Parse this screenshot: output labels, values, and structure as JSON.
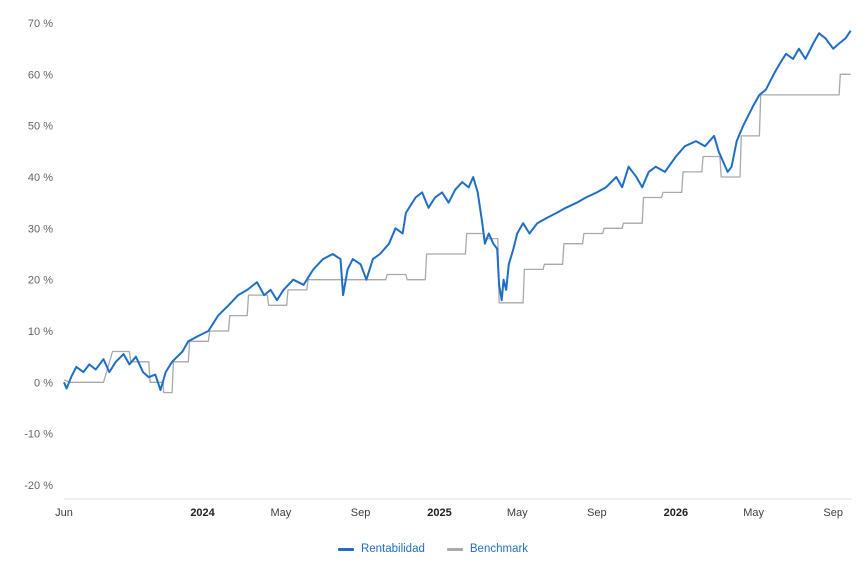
{
  "chart_data": {
    "type": "line",
    "title": "",
    "xlabel": "",
    "ylabel": "",
    "ylim": [
      -20,
      70
    ],
    "y_ticks": [
      70,
      60,
      50,
      40,
      30,
      20,
      10,
      0,
      -10,
      -20
    ],
    "y_tick_labels": [
      "70 %",
      "60 %",
      "50 %",
      "40 %",
      "30 %",
      "20 %",
      "10 %",
      "0 %",
      "-10 %",
      "-20 %"
    ],
    "x_range": [
      "2023-06-01",
      "2026-09-30"
    ],
    "x_ticks": [
      {
        "date": "2023-06-01",
        "label": "Jun",
        "bold": false
      },
      {
        "date": "2024-01-01",
        "label": "2024",
        "bold": true
      },
      {
        "date": "2024-05-01",
        "label": "May",
        "bold": false
      },
      {
        "date": "2024-09-01",
        "label": "Sep",
        "bold": false
      },
      {
        "date": "2025-01-01",
        "label": "2025",
        "bold": true
      },
      {
        "date": "2025-05-01",
        "label": "May",
        "bold": false
      },
      {
        "date": "2025-09-01",
        "label": "Sep",
        "bold": false
      },
      {
        "date": "2026-01-01",
        "label": "2026",
        "bold": true
      },
      {
        "date": "2026-05-01",
        "label": "May",
        "bold": false
      },
      {
        "date": "2026-09-01",
        "label": "Sep",
        "bold": false
      }
    ],
    "grid": true,
    "legend_position": "bottom-center",
    "series": [
      {
        "name": "Rentabilidad",
        "color": "#1f6ec6",
        "points": [
          [
            "2023-06-01",
            0.0
          ],
          [
            "2023-06-05",
            -1.2
          ],
          [
            "2023-06-12",
            1.0
          ],
          [
            "2023-06-20",
            3.0
          ],
          [
            "2023-07-01",
            2.0
          ],
          [
            "2023-07-10",
            3.5
          ],
          [
            "2023-07-20",
            2.5
          ],
          [
            "2023-08-01",
            4.5
          ],
          [
            "2023-08-10",
            2.0
          ],
          [
            "2023-08-20",
            4.0
          ],
          [
            "2023-09-01",
            5.5
          ],
          [
            "2023-09-10",
            3.5
          ],
          [
            "2023-09-20",
            5.0
          ],
          [
            "2023-10-01",
            2.0
          ],
          [
            "2023-10-10",
            1.0
          ],
          [
            "2023-10-20",
            1.5
          ],
          [
            "2023-10-28",
            -1.5
          ],
          [
            "2023-11-05",
            2.0
          ],
          [
            "2023-11-15",
            4.0
          ],
          [
            "2023-12-01",
            6.0
          ],
          [
            "2023-12-10",
            8.0
          ],
          [
            "2023-12-25",
            9.0
          ],
          [
            "2024-01-10",
            10.0
          ],
          [
            "2024-01-25",
            13.0
          ],
          [
            "2024-02-10",
            15.0
          ],
          [
            "2024-02-25",
            17.0
          ],
          [
            "2024-03-10",
            18.0
          ],
          [
            "2024-03-25",
            19.5
          ],
          [
            "2024-04-05",
            17.0
          ],
          [
            "2024-04-15",
            18.0
          ],
          [
            "2024-04-25",
            16.0
          ],
          [
            "2024-05-05",
            18.0
          ],
          [
            "2024-05-20",
            20.0
          ],
          [
            "2024-06-05",
            19.0
          ],
          [
            "2024-06-20",
            22.0
          ],
          [
            "2024-07-05",
            24.0
          ],
          [
            "2024-07-20",
            25.0
          ],
          [
            "2024-08-01",
            24.0
          ],
          [
            "2024-08-05",
            17.0
          ],
          [
            "2024-08-12",
            22.0
          ],
          [
            "2024-08-20",
            24.0
          ],
          [
            "2024-09-01",
            23.0
          ],
          [
            "2024-09-10",
            20.0
          ],
          [
            "2024-09-20",
            24.0
          ],
          [
            "2024-10-01",
            25.0
          ],
          [
            "2024-10-15",
            27.0
          ],
          [
            "2024-10-25",
            30.0
          ],
          [
            "2024-11-05",
            29.0
          ],
          [
            "2024-11-10",
            33.0
          ],
          [
            "2024-11-25",
            36.0
          ],
          [
            "2024-12-05",
            37.0
          ],
          [
            "2024-12-15",
            34.0
          ],
          [
            "2024-12-25",
            36.0
          ],
          [
            "2025-01-05",
            37.0
          ],
          [
            "2025-01-15",
            35.0
          ],
          [
            "2025-01-25",
            37.5
          ],
          [
            "2025-02-05",
            39.0
          ],
          [
            "2025-02-15",
            38.0
          ],
          [
            "2025-02-22",
            40.0
          ],
          [
            "2025-03-01",
            37.0
          ],
          [
            "2025-03-08",
            31.0
          ],
          [
            "2025-03-12",
            27.0
          ],
          [
            "2025-03-18",
            29.0
          ],
          [
            "2025-03-25",
            27.0
          ],
          [
            "2025-03-31",
            26.0
          ],
          [
            "2025-04-03",
            19.0
          ],
          [
            "2025-04-07",
            16.0
          ],
          [
            "2025-04-10",
            20.0
          ],
          [
            "2025-04-14",
            18.0
          ],
          [
            "2025-04-18",
            23.0
          ],
          [
            "2025-04-25",
            26.0
          ],
          [
            "2025-05-01",
            29.0
          ],
          [
            "2025-05-10",
            31.0
          ],
          [
            "2025-05-20",
            29.0
          ],
          [
            "2025-06-01",
            31.0
          ],
          [
            "2025-06-15",
            32.0
          ],
          [
            "2025-07-01",
            33.0
          ],
          [
            "2025-07-15",
            34.0
          ],
          [
            "2025-08-01",
            35.0
          ],
          [
            "2025-08-15",
            36.0
          ],
          [
            "2025-09-01",
            37.0
          ],
          [
            "2025-09-15",
            38.0
          ],
          [
            "2025-10-01",
            40.0
          ],
          [
            "2025-10-10",
            38.0
          ],
          [
            "2025-10-20",
            42.0
          ],
          [
            "2025-11-01",
            40.0
          ],
          [
            "2025-11-10",
            38.0
          ],
          [
            "2025-11-20",
            41.0
          ],
          [
            "2025-12-01",
            42.0
          ],
          [
            "2025-12-15",
            41.0
          ],
          [
            "2026-01-01",
            44.0
          ],
          [
            "2026-01-15",
            46.0
          ],
          [
            "2026-02-01",
            47.0
          ],
          [
            "2026-02-15",
            46.0
          ],
          [
            "2026-03-01",
            48.0
          ],
          [
            "2026-03-08",
            45.0
          ],
          [
            "2026-03-15",
            43.0
          ],
          [
            "2026-03-22",
            41.0
          ],
          [
            "2026-03-28",
            42.0
          ],
          [
            "2026-04-05",
            47.0
          ],
          [
            "2026-04-15",
            50.0
          ],
          [
            "2026-05-01",
            54.0
          ],
          [
            "2026-05-10",
            56.0
          ],
          [
            "2026-05-20",
            57.0
          ],
          [
            "2026-06-01",
            60.0
          ],
          [
            "2026-06-10",
            62.0
          ],
          [
            "2026-06-20",
            64.0
          ],
          [
            "2026-07-01",
            63.0
          ],
          [
            "2026-07-10",
            65.0
          ],
          [
            "2026-07-20",
            63.0
          ],
          [
            "2026-08-01",
            66.0
          ],
          [
            "2026-08-10",
            68.0
          ],
          [
            "2026-08-20",
            67.0
          ],
          [
            "2026-09-01",
            65.0
          ],
          [
            "2026-09-10",
            66.0
          ],
          [
            "2026-09-20",
            67.0
          ],
          [
            "2026-09-28",
            68.5
          ]
        ]
      },
      {
        "name": "Benchmark",
        "color": "#a9a9a9",
        "points": [
          [
            "2023-06-01",
            0.5
          ],
          [
            "2023-06-10",
            0.0
          ],
          [
            "2023-07-01",
            0.0
          ],
          [
            "2023-07-15",
            0.0
          ],
          [
            "2023-08-01",
            0.0
          ],
          [
            "2023-08-15",
            6.0
          ],
          [
            "2023-09-10",
            6.0
          ],
          [
            "2023-09-12",
            4.0
          ],
          [
            "2023-10-10",
            4.0
          ],
          [
            "2023-10-12",
            0.0
          ],
          [
            "2023-11-01",
            0.0
          ],
          [
            "2023-11-02",
            -2.0
          ],
          [
            "2023-11-15",
            -2.0
          ],
          [
            "2023-11-17",
            4.0
          ],
          [
            "2023-12-10",
            4.0
          ],
          [
            "2023-12-12",
            8.0
          ],
          [
            "2024-01-10",
            8.0
          ],
          [
            "2024-01-12",
            10.0
          ],
          [
            "2024-02-10",
            10.0
          ],
          [
            "2024-02-12",
            13.0
          ],
          [
            "2024-03-10",
            13.0
          ],
          [
            "2024-03-12",
            17.0
          ],
          [
            "2024-04-10",
            17.0
          ],
          [
            "2024-04-12",
            15.0
          ],
          [
            "2024-05-10",
            15.0
          ],
          [
            "2024-05-12",
            18.0
          ],
          [
            "2024-06-10",
            18.0
          ],
          [
            "2024-06-12",
            20.0
          ],
          [
            "2024-07-10",
            20.0
          ],
          [
            "2024-07-12",
            20.0
          ],
          [
            "2024-08-10",
            20.0
          ],
          [
            "2024-08-12",
            20.0
          ],
          [
            "2024-09-01",
            20.0
          ],
          [
            "2024-10-10",
            20.0
          ],
          [
            "2024-10-12",
            21.0
          ],
          [
            "2024-11-10",
            21.0
          ],
          [
            "2024-11-12",
            20.0
          ],
          [
            "2024-12-10",
            20.0
          ],
          [
            "2024-12-12",
            25.0
          ],
          [
            "2025-01-10",
            25.0
          ],
          [
            "2025-01-12",
            25.0
          ],
          [
            "2025-02-10",
            25.0
          ],
          [
            "2025-02-12",
            29.0
          ],
          [
            "2025-03-10",
            29.0
          ],
          [
            "2025-03-12",
            28.0
          ],
          [
            "2025-04-01",
            28.0
          ],
          [
            "2025-04-03",
            15.5
          ],
          [
            "2025-05-10",
            15.5
          ],
          [
            "2025-05-12",
            22.0
          ],
          [
            "2025-06-10",
            22.0
          ],
          [
            "2025-06-12",
            23.0
          ],
          [
            "2025-07-10",
            23.0
          ],
          [
            "2025-07-12",
            27.0
          ],
          [
            "2025-08-10",
            27.0
          ],
          [
            "2025-08-12",
            29.0
          ],
          [
            "2025-09-10",
            29.0
          ],
          [
            "2025-09-12",
            30.0
          ],
          [
            "2025-10-10",
            30.0
          ],
          [
            "2025-10-12",
            31.0
          ],
          [
            "2025-11-10",
            31.0
          ],
          [
            "2025-11-12",
            36.0
          ],
          [
            "2025-12-10",
            36.0
          ],
          [
            "2025-12-12",
            37.0
          ],
          [
            "2026-01-10",
            37.0
          ],
          [
            "2026-01-12",
            41.0
          ],
          [
            "2026-02-10",
            41.0
          ],
          [
            "2026-02-12",
            44.0
          ],
          [
            "2026-03-10",
            44.0
          ],
          [
            "2026-03-12",
            40.0
          ],
          [
            "2026-04-10",
            40.0
          ],
          [
            "2026-04-12",
            48.0
          ],
          [
            "2026-05-10",
            48.0
          ],
          [
            "2026-05-12",
            56.0
          ],
          [
            "2026-06-10",
            56.0
          ],
          [
            "2026-07-10",
            56.0
          ],
          [
            "2026-08-10",
            56.0
          ],
          [
            "2026-08-12",
            56.0
          ],
          [
            "2026-09-10",
            56.0
          ],
          [
            "2026-09-12",
            60.0
          ],
          [
            "2026-09-28",
            60.0
          ]
        ]
      }
    ]
  }
}
